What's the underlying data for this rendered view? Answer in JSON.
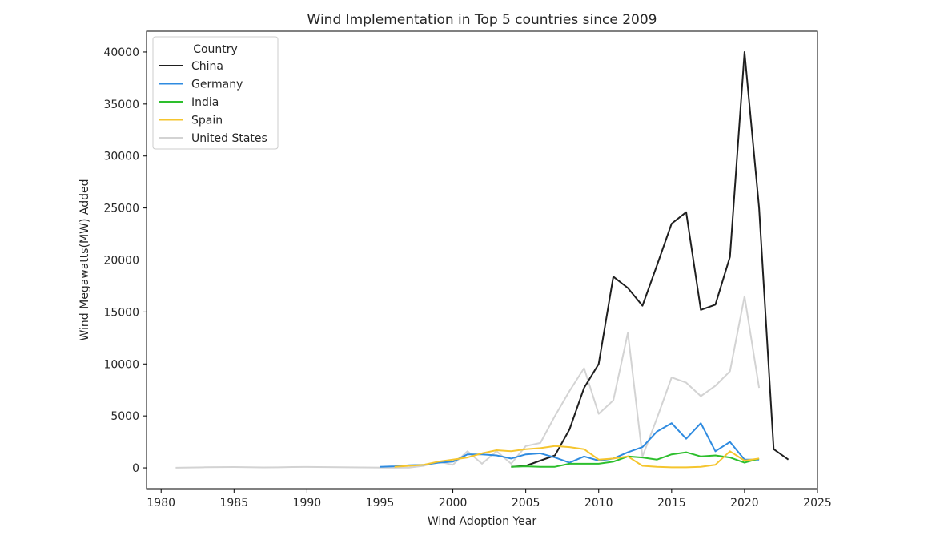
{
  "chart_data": {
    "type": "line",
    "title": "Wind Implementation in Top 5 countries since 2009",
    "xlabel": "Wind Adoption Year",
    "ylabel": "Wind Megawatts(MW) Added",
    "xlim": [
      1979,
      2025
    ],
    "ylim": [
      -2000,
      42000
    ],
    "xticks": [
      1980,
      1985,
      1990,
      1995,
      2000,
      2005,
      2010,
      2015,
      2020,
      2025
    ],
    "yticks": [
      0,
      5000,
      10000,
      15000,
      20000,
      25000,
      30000,
      35000,
      40000
    ],
    "grid": false,
    "legend": {
      "title": "Country",
      "placement": "top-left"
    },
    "series": [
      {
        "name": "China",
        "color": "#1f1f1f",
        "x": [
          2004,
          2005,
          2006,
          2007,
          2008,
          2009,
          2010,
          2011,
          2012,
          2013,
          2014,
          2015,
          2016,
          2017,
          2018,
          2019,
          2020,
          2021,
          2022,
          2023
        ],
        "y": [
          100,
          200,
          700,
          1200,
          3700,
          7700,
          10000,
          18400,
          17300,
          15600,
          19500,
          23500,
          24600,
          15200,
          15700,
          20300,
          40000,
          25000,
          1800,
          800
        ]
      },
      {
        "name": "Germany",
        "color": "#2f8be0",
        "x": [
          1995,
          1996,
          1997,
          1998,
          1999,
          2000,
          2001,
          2002,
          2003,
          2004,
          2005,
          2006,
          2007,
          2008,
          2009,
          2010,
          2011,
          2012,
          2013,
          2014,
          2015,
          2016,
          2017,
          2018,
          2019,
          2020,
          2021
        ],
        "y": [
          100,
          150,
          250,
          300,
          500,
          600,
          1300,
          1300,
          1200,
          900,
          1300,
          1400,
          1000,
          500,
          1100,
          700,
          900,
          1500,
          2000,
          3500,
          4300,
          2800,
          4300,
          1600,
          2500,
          800,
          800
        ]
      },
      {
        "name": "India",
        "color": "#2dbf2d",
        "x": [
          2004,
          2005,
          2006,
          2007,
          2008,
          2009,
          2010,
          2011,
          2012,
          2013,
          2014,
          2015,
          2016,
          2017,
          2018,
          2019,
          2020,
          2021
        ],
        "y": [
          100,
          150,
          100,
          100,
          400,
          400,
          400,
          600,
          1100,
          1000,
          800,
          1300,
          1500,
          1100,
          1200,
          1000,
          500,
          900
        ]
      },
      {
        "name": "Spain",
        "color": "#f5c52e",
        "x": [
          1996,
          1997,
          1998,
          1999,
          2000,
          2001,
          2002,
          2003,
          2004,
          2005,
          2006,
          2007,
          2008,
          2009,
          2010,
          2011,
          2012,
          2013,
          2014,
          2015,
          2016,
          2017,
          2018,
          2019,
          2020,
          2021
        ],
        "y": [
          100,
          200,
          300,
          600,
          800,
          1000,
          1400,
          1700,
          1600,
          1800,
          1900,
          2100,
          2000,
          1800,
          800,
          900,
          1100,
          200,
          100,
          50,
          50,
          100,
          300,
          1600,
          700,
          900
        ]
      },
      {
        "name": "United States",
        "color": "#d3d3d3",
        "x": [
          1981,
          1983,
          1985,
          1987,
          1988,
          1989,
          1990,
          1996,
          1997,
          1998,
          1999,
          2000,
          2001,
          2002,
          2003,
          2004,
          2005,
          2006,
          2007,
          2008,
          2009,
          2010,
          2011,
          2012,
          2013,
          2014,
          2015,
          2016,
          2017,
          2018,
          2019,
          2020,
          2021
        ],
        "y": [
          10,
          60,
          80,
          40,
          50,
          80,
          90,
          10,
          20,
          200,
          600,
          300,
          1600,
          400,
          1600,
          400,
          2100,
          2400,
          5000,
          7400,
          9600,
          5200,
          6500,
          13000,
          1100,
          4800,
          8700,
          8200,
          6900,
          7900,
          9300,
          16500,
          7700
        ]
      }
    ]
  }
}
